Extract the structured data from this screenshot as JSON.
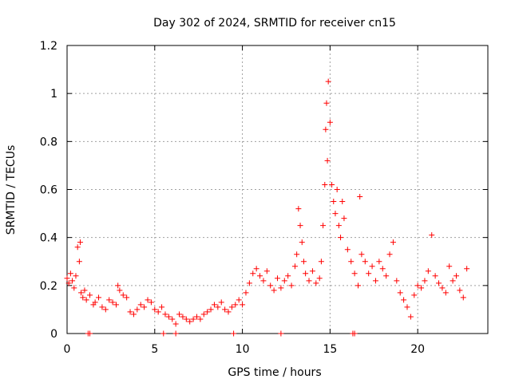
{
  "chart_data": {
    "type": "scatter",
    "title": "Day 302 of 2024, SRMTID for receiver cn15",
    "xlabel": "GPS time / hours",
    "ylabel": "SRMTID / TECUs",
    "xlim": [
      0,
      24
    ],
    "ylim": [
      0,
      1.2
    ],
    "x_ticks": [
      0,
      5,
      10,
      15,
      20
    ],
    "x_tick_labels": [
      "0",
      "5",
      "10",
      "15",
      "20"
    ],
    "y_ticks": [
      0,
      0.2,
      0.4,
      0.6,
      0.8,
      1.0,
      1.2
    ],
    "y_tick_labels": [
      "0",
      "0.2",
      "0.4",
      "0.6",
      "0.8",
      "1",
      "1.2"
    ],
    "grid": true,
    "marker": "+",
    "color": "#ff0000",
    "series": [
      {
        "name": "cn15",
        "x": [
          0.0,
          0.1,
          0.2,
          0.3,
          0.4,
          0.5,
          0.6,
          0.7,
          0.75,
          0.8,
          0.9,
          1.0,
          1.1,
          1.3,
          1.5,
          1.6,
          1.8,
          2.0,
          2.2,
          2.4,
          2.6,
          2.8,
          2.9,
          3.0,
          3.2,
          3.4,
          3.6,
          3.8,
          4.0,
          4.2,
          4.4,
          4.6,
          4.8,
          5.0,
          5.2,
          5.4,
          5.6,
          5.8,
          6.0,
          6.2,
          6.4,
          6.6,
          6.8,
          7.0,
          7.2,
          7.4,
          7.6,
          7.8,
          8.0,
          8.2,
          8.4,
          8.6,
          8.8,
          9.0,
          9.2,
          9.4,
          9.6,
          9.8,
          10.0,
          10.2,
          10.4,
          10.6,
          10.8,
          11.0,
          11.2,
          11.4,
          11.6,
          11.8,
          12.0,
          12.2,
          12.4,
          12.6,
          12.8,
          13.0,
          13.1,
          13.2,
          13.3,
          13.4,
          13.5,
          13.6,
          13.8,
          14.0,
          14.2,
          14.4,
          14.5,
          14.6,
          14.7,
          14.75,
          14.8,
          14.85,
          14.9,
          15.0,
          15.1,
          15.2,
          15.3,
          15.4,
          15.5,
          15.6,
          15.7,
          15.8,
          16.0,
          16.2,
          16.4,
          16.6,
          16.7,
          16.8,
          17.0,
          17.2,
          17.4,
          17.6,
          17.8,
          18.0,
          18.2,
          18.4,
          18.6,
          18.8,
          19.0,
          19.2,
          19.4,
          19.6,
          19.8,
          20.0,
          20.2,
          20.4,
          20.6,
          20.8,
          21.0,
          21.2,
          21.4,
          21.6,
          21.8,
          22.0,
          22.2,
          22.4,
          22.6,
          22.8,
          1.2,
          1.3,
          5.5,
          6.2,
          9.5,
          12.2,
          16.3,
          16.4
        ],
        "y": [
          0.23,
          0.21,
          0.25,
          0.22,
          0.19,
          0.24,
          0.36,
          0.3,
          0.38,
          0.17,
          0.15,
          0.18,
          0.14,
          0.16,
          0.12,
          0.13,
          0.15,
          0.11,
          0.1,
          0.14,
          0.13,
          0.12,
          0.2,
          0.18,
          0.16,
          0.15,
          0.09,
          0.08,
          0.1,
          0.12,
          0.11,
          0.14,
          0.13,
          0.1,
          0.09,
          0.11,
          0.08,
          0.07,
          0.06,
          0.04,
          0.08,
          0.07,
          0.06,
          0.05,
          0.06,
          0.07,
          0.06,
          0.08,
          0.09,
          0.1,
          0.12,
          0.11,
          0.13,
          0.1,
          0.09,
          0.11,
          0.12,
          0.14,
          0.12,
          0.17,
          0.21,
          0.25,
          0.27,
          0.24,
          0.22,
          0.26,
          0.2,
          0.18,
          0.23,
          0.19,
          0.22,
          0.24,
          0.2,
          0.28,
          0.33,
          0.52,
          0.45,
          0.38,
          0.3,
          0.25,
          0.22,
          0.26,
          0.21,
          0.23,
          0.3,
          0.45,
          0.62,
          0.85,
          0.96,
          0.72,
          1.05,
          0.88,
          0.62,
          0.55,
          0.5,
          0.6,
          0.45,
          0.4,
          0.55,
          0.48,
          0.35,
          0.3,
          0.25,
          0.2,
          0.57,
          0.33,
          0.3,
          0.25,
          0.28,
          0.22,
          0.3,
          0.27,
          0.24,
          0.33,
          0.38,
          0.22,
          0.17,
          0.14,
          0.11,
          0.07,
          0.16,
          0.2,
          0.19,
          0.22,
          0.26,
          0.41,
          0.24,
          0.21,
          0.19,
          0.17,
          0.28,
          0.22,
          0.24,
          0.18,
          0.15,
          0.27,
          0.0,
          0.0,
          0.0,
          0.0,
          0.0,
          0.0,
          0.0,
          0.0
        ]
      }
    ]
  }
}
